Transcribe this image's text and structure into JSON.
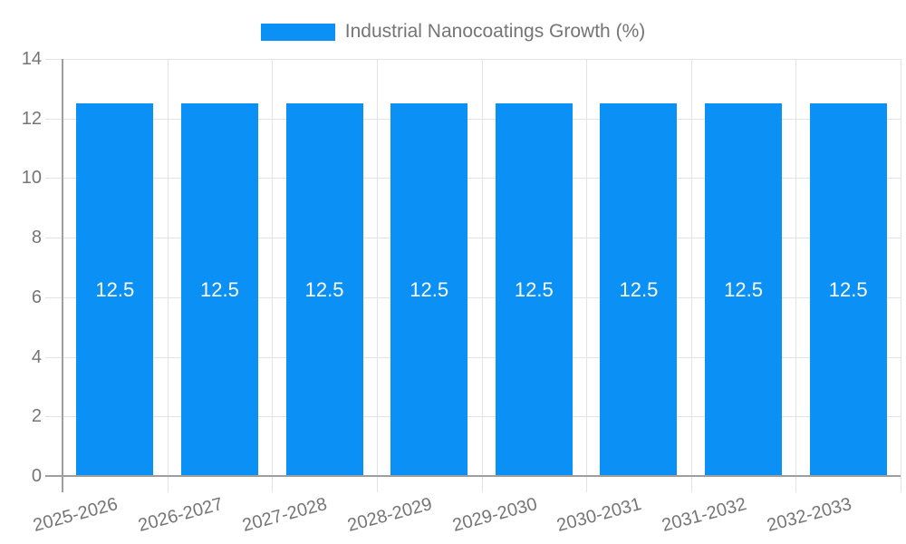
{
  "legend": {
    "label": "Industrial Nanocoatings Growth (%)"
  },
  "chart_data": {
    "type": "bar",
    "title": "Industrial Nanocoatings Growth (%)",
    "series_name": "Industrial Nanocoatings Growth (%)",
    "categories": [
      "2025-2026",
      "2026-2027",
      "2027-2028",
      "2028-2029",
      "2029-2030",
      "2030-2031",
      "2031-2032",
      "2032-2033"
    ],
    "values": [
      12.5,
      12.5,
      12.5,
      12.5,
      12.5,
      12.5,
      12.5,
      12.5
    ],
    "bar_labels": [
      "12.5",
      "12.5",
      "12.5",
      "12.5",
      "12.5",
      "12.5",
      "12.5",
      "12.5"
    ],
    "xlabel": "",
    "ylabel": "",
    "ylim": [
      0,
      14
    ],
    "yticks": [
      0,
      2,
      4,
      6,
      8,
      10,
      12,
      14
    ],
    "grid": "on",
    "legend_position": "top-center",
    "x_tick_rotation_deg": -15,
    "colors": {
      "bar": "#0b90f5",
      "bar_label": "#ffffff",
      "axis_text": "#757575",
      "legend_text": "#757575"
    }
  }
}
